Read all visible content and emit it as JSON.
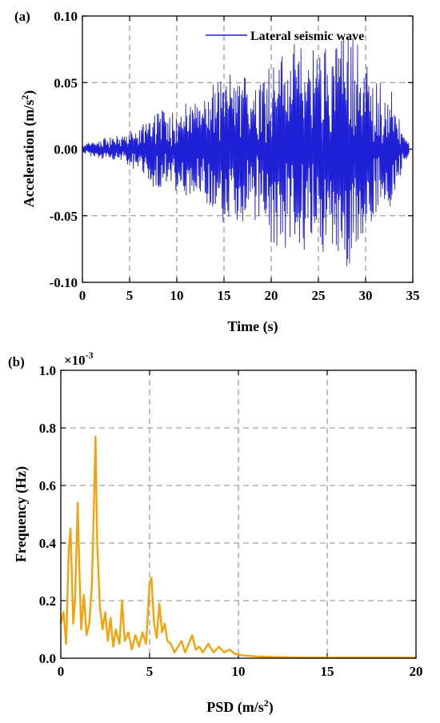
{
  "chart_data": [
    {
      "panel_label": "(a)",
      "type": "line",
      "xlabel": "Time (s)",
      "ylabel_parts": [
        "Acceleration (m/s",
        "2",
        ")"
      ],
      "xlim": [
        0,
        35
      ],
      "ylim": [
        -0.1,
        0.1
      ],
      "xticks": [
        "0",
        "5",
        "10",
        "15",
        "20",
        "25",
        "30",
        "35"
      ],
      "yticks": [
        "-0.10",
        "-0.05",
        "0.00",
        "0.05",
        "0.10"
      ],
      "grid": true,
      "legend_position": "top-right",
      "series": [
        {
          "name": "Lateral seismic wave",
          "color": "#1f1fd6",
          "envelope": {
            "t": [
              0,
              2,
              4,
              6,
              7.5,
              10,
              12,
              14.5,
              16,
              18,
              20,
              22,
              24,
              26,
              27.5,
              29,
              31,
              33,
              34,
              35
            ],
            "amplitude": [
              0.003,
              0.008,
              0.01,
              0.015,
              0.03,
              0.03,
              0.035,
              0.05,
              0.055,
              0.05,
              0.07,
              0.075,
              0.07,
              0.08,
              0.085,
              0.08,
              0.05,
              0.04,
              0.01,
              0.002
            ]
          }
        }
      ]
    },
    {
      "panel_label": "(b)",
      "type": "line",
      "xlabel_parts": [
        "PSD (m/s",
        "2",
        ")"
      ],
      "ylabel": "Frequency (Hz)",
      "y_multiplier": "×10-3",
      "xlim": [
        0,
        20
      ],
      "ylim": [
        0,
        1.0
      ],
      "xticks": [
        "0",
        "5",
        "10",
        "15",
        "20"
      ],
      "yticks": [
        "0.0",
        "0.2",
        "0.4",
        "0.6",
        "0.8",
        "1.0"
      ],
      "grid": true,
      "series": [
        {
          "color": "#f5a20a",
          "x": [
            0,
            0.15,
            0.3,
            0.45,
            0.55,
            0.7,
            0.8,
            0.95,
            1.05,
            1.15,
            1.3,
            1.45,
            1.6,
            1.75,
            1.85,
            1.95,
            2.05,
            2.2,
            2.35,
            2.5,
            2.65,
            2.8,
            2.95,
            3.1,
            3.3,
            3.45,
            3.6,
            3.8,
            4.0,
            4.2,
            4.4,
            4.6,
            4.8,
            5.0,
            5.1,
            5.25,
            5.4,
            5.55,
            5.7,
            5.85,
            6.0,
            6.2,
            6.4,
            6.6,
            6.8,
            7.0,
            7.2,
            7.4,
            7.6,
            7.8,
            8.0,
            8.3,
            8.6,
            8.9,
            9.2,
            9.5,
            9.8,
            10.2,
            10.6,
            11.0,
            11.5,
            12.0,
            13.0,
            14.0,
            15.0,
            16.0,
            17.0,
            18.0,
            19.0,
            20.0
          ],
          "y": [
            0.12,
            0.16,
            0.05,
            0.38,
            0.45,
            0.12,
            0.2,
            0.54,
            0.3,
            0.1,
            0.22,
            0.08,
            0.12,
            0.25,
            0.5,
            0.77,
            0.4,
            0.18,
            0.1,
            0.16,
            0.06,
            0.14,
            0.04,
            0.1,
            0.05,
            0.2,
            0.06,
            0.09,
            0.03,
            0.08,
            0.04,
            0.09,
            0.05,
            0.26,
            0.28,
            0.12,
            0.07,
            0.19,
            0.09,
            0.12,
            0.06,
            0.05,
            0.02,
            0.04,
            0.06,
            0.02,
            0.05,
            0.08,
            0.03,
            0.04,
            0.02,
            0.05,
            0.02,
            0.04,
            0.02,
            0.03,
            0.015,
            0.01,
            0.008,
            0.006,
            0.005,
            0.004,
            0.003,
            0.002,
            0.002,
            0.002,
            0.002,
            0.002,
            0.002,
            0.002
          ]
        }
      ]
    }
  ]
}
